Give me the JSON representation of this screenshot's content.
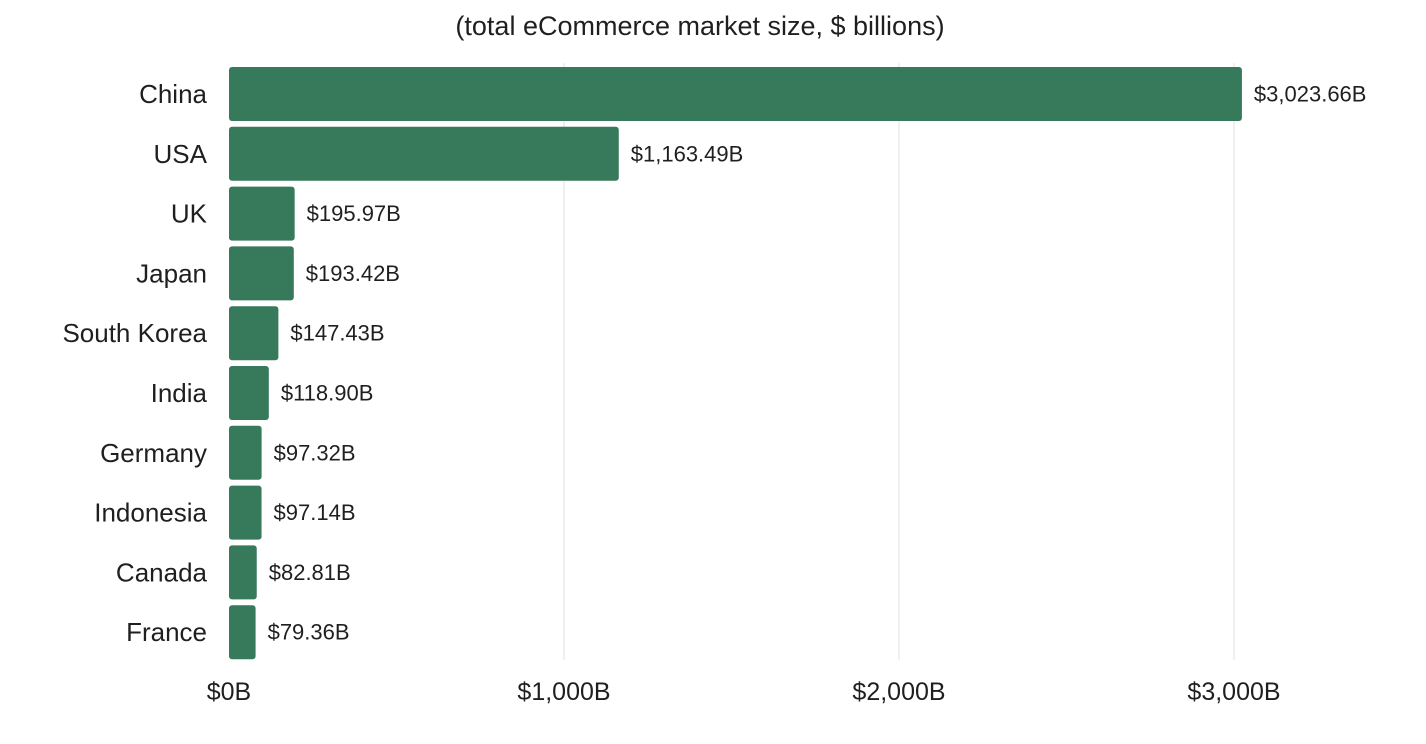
{
  "chart_data": {
    "type": "bar",
    "orientation": "horizontal",
    "subtitle": "(total eCommerce market size, $ billions)",
    "categories": [
      "China",
      "USA",
      "UK",
      "Japan",
      "South Korea",
      "India",
      "Germany",
      "Indonesia",
      "Canada",
      "France"
    ],
    "values": [
      3023.66,
      1163.49,
      195.97,
      193.42,
      147.43,
      118.9,
      97.32,
      97.14,
      82.81,
      79.36
    ],
    "data_labels": [
      "$3,023.66B",
      "$1,163.49B",
      "$195.97B",
      "$193.42B",
      "$147.43B",
      "$118.90B",
      "$97.32B",
      "$97.14B",
      "$82.81B",
      "$79.36B"
    ],
    "x_ticks": [
      0,
      1000,
      2000,
      3000
    ],
    "x_tick_labels": [
      "$0B",
      "$1,000B",
      "$2,000B",
      "$3,000B"
    ],
    "xlim": [
      0,
      3000
    ],
    "grid": "vertical",
    "legend": "none",
    "colors": {
      "bar": "#37795b",
      "grid": "#e2e2e2",
      "text": "#1f1f1f"
    }
  }
}
